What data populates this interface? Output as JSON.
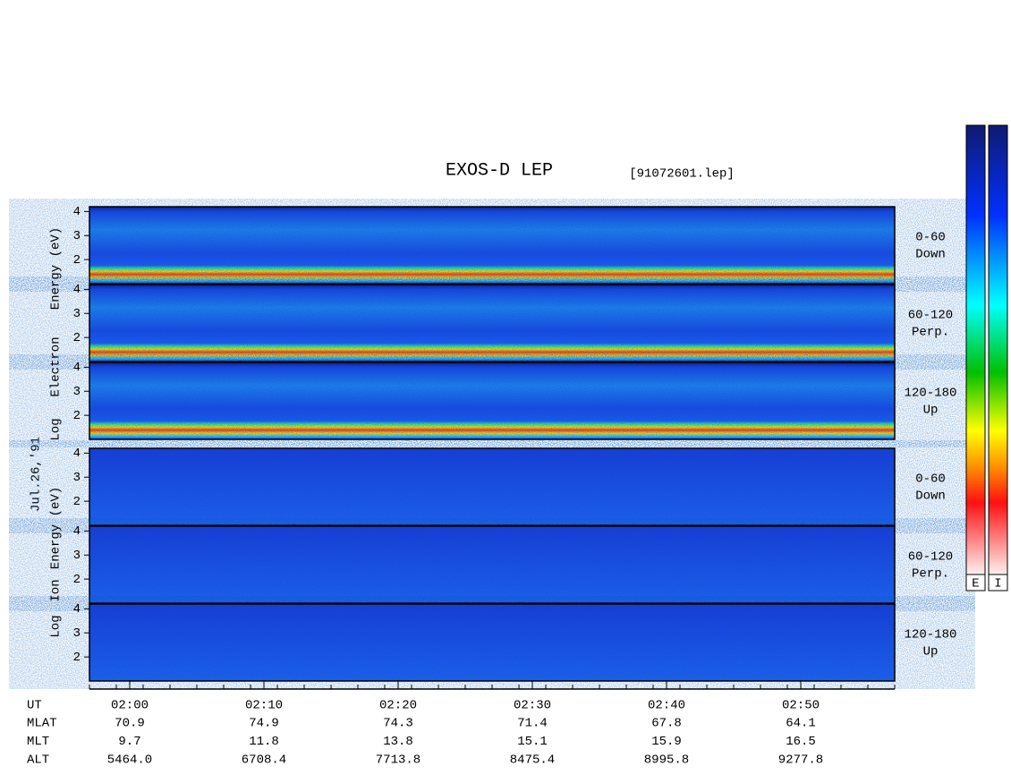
{
  "title": "EXOS-D LEP",
  "file": "[91072601.lep]",
  "date": "Jul.26,'91",
  "electron": {
    "label": [
      "Log",
      "Electron",
      "Energy (eV)"
    ],
    "panels": [
      {
        "label": [
          "0-60",
          "Down"
        ]
      },
      {
        "label": [
          "60-120",
          "Perp."
        ]
      },
      {
        "label": [
          "120-180",
          "Up"
        ]
      }
    ]
  },
  "ion": {
    "label": [
      "Log",
      "Ion",
      "Energy (eV)"
    ],
    "panels": [
      {
        "label": [
          "0-60",
          "Down"
        ]
      },
      {
        "label": [
          "60-120",
          "Perp."
        ]
      },
      {
        "label": [
          "120-180",
          "Up"
        ]
      }
    ]
  },
  "y_axis": {
    "ylim": [
      1,
      4.2
    ],
    "yticks": [
      2,
      3,
      4
    ]
  },
  "x_axis": {
    "name": "UT",
    "xlim": [
      117,
      177
    ],
    "xticks": [
      {
        "value": 120,
        "label": "02:00"
      },
      {
        "value": 130,
        "label": "02:10"
      },
      {
        "value": 140,
        "label": "02:20"
      },
      {
        "value": 150,
        "label": "02:30"
      },
      {
        "value": 160,
        "label": "02:40"
      },
      {
        "value": 170,
        "label": "02:50"
      }
    ]
  },
  "ephemeris": {
    "rows": [
      {
        "name": "MLAT",
        "values": [
          "70.9",
          "74.9",
          "74.3",
          "71.4",
          "67.8",
          "64.1"
        ]
      },
      {
        "name": "MLT",
        "values": [
          "9.7",
          "11.8",
          "13.8",
          "15.1",
          "15.9",
          "16.5"
        ]
      },
      {
        "name": "ALT",
        "values": [
          "5464.0",
          "6708.4",
          "7713.8",
          "8475.4",
          "8995.8",
          "9277.8"
        ]
      }
    ]
  },
  "colorbars": [
    {
      "label": "E"
    },
    {
      "label": "I"
    }
  ]
}
